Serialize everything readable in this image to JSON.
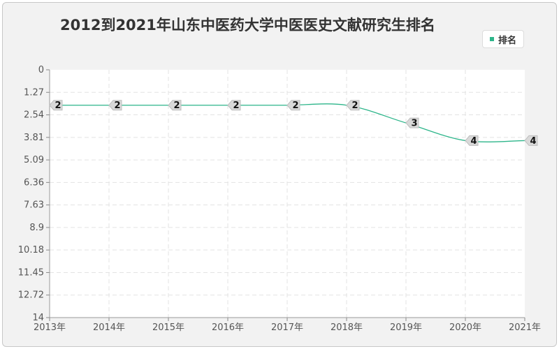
{
  "chart_data": {
    "type": "line",
    "title": "2012到2021年山东中医药大学中医医史文献研究生排名",
    "x": [
      "2013年",
      "2014年",
      "2015年",
      "2016年",
      "2017年",
      "2018年",
      "2019年",
      "2020年",
      "2021年"
    ],
    "series": [
      {
        "name": "排名",
        "values": [
          2,
          2,
          2,
          2,
          2,
          2,
          3,
          4,
          4
        ]
      }
    ],
    "yticks": [
      "0",
      "1.27",
      "2.54",
      "3.81",
      "5.09",
      "6.36",
      "7.63",
      "8.9",
      "10.18",
      "11.45",
      "12.72",
      "14"
    ],
    "ylim": [
      0,
      14
    ],
    "y_reversed": true,
    "grid": true,
    "legend_position": "top-right",
    "colors": {
      "line": "#2db58a",
      "label_bg": "#d9d9d9"
    }
  }
}
